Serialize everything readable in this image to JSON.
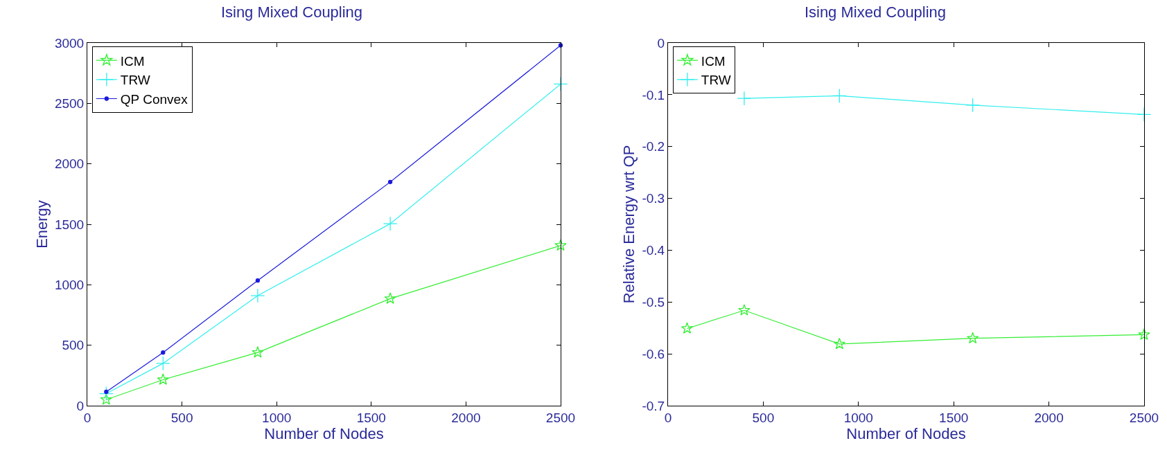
{
  "chart_data": [
    {
      "type": "line",
      "title": "Ising Mixed Coupling",
      "xlabel": "Number of Nodes",
      "ylabel": "Energy",
      "x": [
        100,
        400,
        900,
        1600,
        2500
      ],
      "xlim": [
        0,
        2500
      ],
      "xticks": [
        0,
        500,
        1000,
        1500,
        2000,
        2500
      ],
      "ylim": [
        0,
        3000
      ],
      "yticks": [
        0,
        500,
        1000,
        1500,
        2000,
        2500,
        3000
      ],
      "grid": false,
      "legend": "top left",
      "series": [
        {
          "name": "ICM",
          "color": "#33ee33",
          "marker": "star",
          "values": [
            50,
            215,
            440,
            885,
            1325
          ]
        },
        {
          "name": "TRW",
          "color": "#33eeee",
          "marker": "cross",
          "values": [
            100,
            350,
            910,
            1505,
            2660
          ]
        },
        {
          "name": "QP Convex",
          "color": "#1a1add",
          "marker": "circle",
          "values": [
            115,
            440,
            1035,
            1850,
            2980
          ]
        }
      ]
    },
    {
      "type": "line",
      "title": "Ising Mixed Coupling",
      "xlabel": "Number of Nodes",
      "ylabel": "Relative Energy wrt QP",
      "x": [
        100,
        400,
        900,
        1600,
        2500
      ],
      "xlim": [
        0,
        2500
      ],
      "xticks": [
        0,
        500,
        1000,
        1500,
        2000,
        2500
      ],
      "ylim": [
        -0.7,
        0
      ],
      "yticks": [
        -0.7,
        -0.6,
        -0.5,
        -0.4,
        -0.3,
        -0.2,
        -0.1,
        0
      ],
      "grid": false,
      "legend": "top left",
      "series": [
        {
          "name": "ICM",
          "color": "#33ee33",
          "marker": "star",
          "values": [
            -0.551,
            -0.516,
            -0.581,
            -0.57,
            -0.563
          ]
        },
        {
          "name": "TRW",
          "color": "#33eeee",
          "marker": "cross",
          "values": [
            null,
            -0.107,
            -0.102,
            -0.12,
            -0.138
          ]
        }
      ]
    }
  ]
}
